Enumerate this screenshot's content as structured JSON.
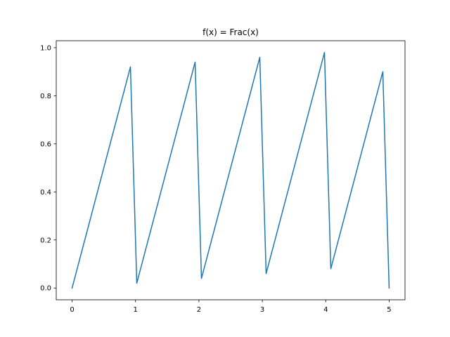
{
  "chart_data": {
    "type": "line",
    "title": "f(x) = Frac(x)",
    "xlabel": "",
    "ylabel": "",
    "xlim": [
      -0.25,
      5.25
    ],
    "ylim": [
      -0.049,
      1.029
    ],
    "x_ticks": [
      0,
      1,
      2,
      3,
      4,
      5
    ],
    "x_tick_labels": [
      "0",
      "1",
      "2",
      "3",
      "4",
      "5"
    ],
    "y_ticks": [
      0.0,
      0.2,
      0.4,
      0.6,
      0.8,
      1.0
    ],
    "y_tick_labels": [
      "0.0",
      "0.2",
      "0.4",
      "0.6",
      "0.8",
      "1.0"
    ],
    "grid": false,
    "series": [
      {
        "color": "#1f77b4",
        "x": [
          0.0,
          0.92,
          1.02,
          1.94,
          2.04,
          2.96,
          3.06,
          3.98,
          4.08,
          4.9,
          5.0
        ],
        "y": [
          0.0,
          0.92,
          0.02,
          0.94,
          0.04,
          0.96,
          0.06,
          0.98,
          0.08,
          0.9,
          0.0
        ]
      }
    ]
  }
}
